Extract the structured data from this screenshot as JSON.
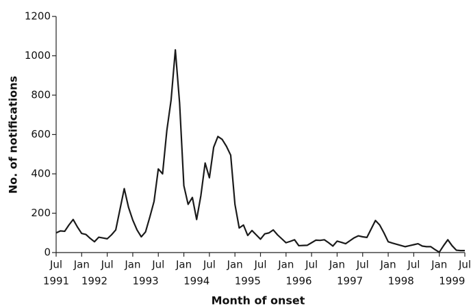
{
  "chart_data": {
    "type": "line",
    "xlabel": "Month of onset",
    "ylabel": "No. of notifications",
    "x": [
      "1991-07",
      "1991-08",
      "1991-09",
      "1991-10",
      "1991-11",
      "1991-12",
      "1992-01",
      "1992-02",
      "1992-03",
      "1992-04",
      "1992-05",
      "1992-06",
      "1992-07",
      "1992-08",
      "1992-09",
      "1992-10",
      "1992-11",
      "1992-12",
      "1993-01",
      "1993-02",
      "1993-03",
      "1993-04",
      "1993-05",
      "1993-06",
      "1993-07",
      "1993-08",
      "1993-09",
      "1993-10",
      "1993-11",
      "1993-12",
      "1994-01",
      "1994-02",
      "1994-03",
      "1994-04",
      "1994-05",
      "1994-06",
      "1994-07",
      "1994-08",
      "1994-09",
      "1994-10",
      "1994-11",
      "1994-12",
      "1995-01",
      "1995-02",
      "1995-03",
      "1995-04",
      "1995-05",
      "1995-06",
      "1995-07",
      "1995-08",
      "1995-09",
      "1995-10",
      "1995-11",
      "1995-12",
      "1996-01",
      "1996-02",
      "1996-03",
      "1996-04",
      "1996-05",
      "1996-06",
      "1996-07",
      "1996-08",
      "1996-09",
      "1996-10",
      "1996-11",
      "1996-12",
      "1997-01",
      "1997-02",
      "1997-03",
      "1997-04",
      "1997-05",
      "1997-06",
      "1997-07",
      "1997-08",
      "1997-09",
      "1997-10",
      "1997-11",
      "1997-12",
      "1998-01",
      "1998-02",
      "1998-03",
      "1998-04",
      "1998-05",
      "1998-06",
      "1998-07",
      "1998-08",
      "1998-09",
      "1998-10",
      "1998-11",
      "1998-12",
      "1999-01",
      "1999-02",
      "1999-03",
      "1999-04",
      "1999-05",
      "1999-06",
      "1999-07"
    ],
    "series": [
      {
        "name": "Notifications",
        "color": "#1a1a1a",
        "values": [
          100,
          110,
          108,
          140,
          168,
          130,
          97,
          92,
          72,
          55,
          78,
          74,
          70,
          90,
          115,
          220,
          325,
          230,
          165,
          115,
          80,
          105,
          180,
          260,
          425,
          400,
          620,
          775,
          1030,
          760,
          340,
          245,
          280,
          168,
          290,
          455,
          380,
          535,
          590,
          575,
          540,
          495,
          245,
          125,
          140,
          87,
          112,
          90,
          68,
          95,
          100,
          115,
          90,
          70,
          50,
          57,
          65,
          35,
          36,
          37,
          50,
          63,
          62,
          65,
          50,
          33,
          58,
          52,
          45,
          60,
          75,
          85,
          80,
          77,
          120,
          163,
          140,
          100,
          55,
          48,
          42,
          36,
          30,
          35,
          40,
          45,
          33,
          30,
          30,
          15,
          2,
          35,
          65,
          35,
          12,
          10,
          10
        ]
      }
    ],
    "ylim": [
      0,
      1200
    ],
    "yticks": [
      0,
      200,
      400,
      600,
      800,
      1000,
      1200
    ],
    "xlim": [
      "1991-07",
      "1999-07"
    ],
    "xticks": [
      {
        "value": "1991-07",
        "label": "Jul"
      },
      {
        "value": "1992-01",
        "label": "Jan"
      },
      {
        "value": "1992-07",
        "label": "Jul"
      },
      {
        "value": "1993-01",
        "label": "Jan"
      },
      {
        "value": "1993-07",
        "label": "Jul"
      },
      {
        "value": "1994-01",
        "label": "Jan"
      },
      {
        "value": "1994-07",
        "label": "Jul"
      },
      {
        "value": "1995-01",
        "label": "Jan"
      },
      {
        "value": "1995-07",
        "label": "Jul"
      },
      {
        "value": "1996-01",
        "label": "Jan"
      },
      {
        "value": "1996-07",
        "label": "Jul"
      },
      {
        "value": "1997-01",
        "label": "Jan"
      },
      {
        "value": "1997-07",
        "label": "Jul"
      },
      {
        "value": "1998-01",
        "label": "Jan"
      },
      {
        "value": "1998-07",
        "label": "Jul"
      },
      {
        "value": "1999-01",
        "label": "Jan"
      },
      {
        "value": "1999-07",
        "label": "Jul"
      }
    ],
    "year_labels": [
      {
        "value": "1991-07",
        "label": "1991"
      },
      {
        "value": "1992-04",
        "label": "1992"
      },
      {
        "value": "1993-04",
        "label": "1993"
      },
      {
        "value": "1994-04",
        "label": "1994"
      },
      {
        "value": "1995-04",
        "label": "1995"
      },
      {
        "value": "1996-04",
        "label": "1996"
      },
      {
        "value": "1997-04",
        "label": "1997"
      },
      {
        "value": "1998-04",
        "label": "1998"
      },
      {
        "value": "1999-04",
        "label": "1999"
      }
    ],
    "grid": false
  }
}
